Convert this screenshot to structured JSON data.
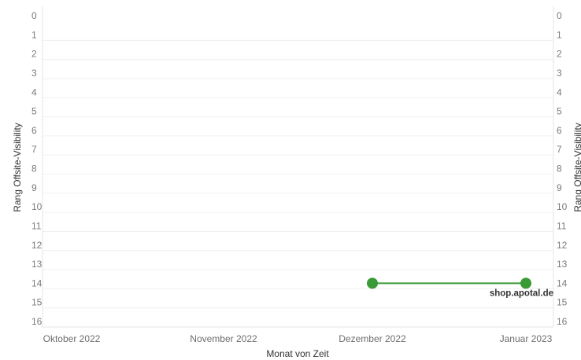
{
  "chart_data": {
    "type": "line",
    "xlabel": "Monat von Zeit",
    "ylabel": "Rang Offsite-Visibility",
    "ylabel_right": "Rang Offsite-Visibility",
    "x_categories": [
      "Oktober 2022",
      "November 2022",
      "Dezember 2022",
      "Januar 2023"
    ],
    "y_ticks": [
      0,
      1,
      2,
      3,
      4,
      5,
      6,
      7,
      8,
      9,
      10,
      11,
      12,
      13,
      14,
      15,
      16
    ],
    "ylim": [
      0,
      16
    ],
    "y_reversed": true,
    "grid": true,
    "series": [
      {
        "name": "shop.apotal.de",
        "color": "#3a9a35",
        "points": [
          {
            "x": "Dezember 2022",
            "y": 14
          },
          {
            "x": "Januar 2023",
            "y": 14
          }
        ]
      }
    ]
  }
}
